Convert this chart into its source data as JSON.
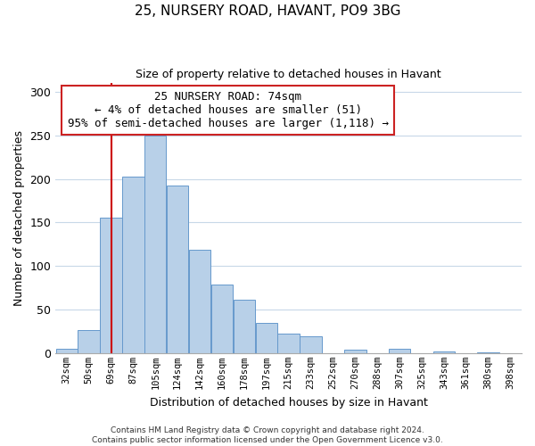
{
  "title": "25, NURSERY ROAD, HAVANT, PO9 3BG",
  "subtitle": "Size of property relative to detached houses in Havant",
  "xlabel": "Distribution of detached houses by size in Havant",
  "ylabel": "Number of detached properties",
  "footer_line1": "Contains HM Land Registry data © Crown copyright and database right 2024.",
  "footer_line2": "Contains public sector information licensed under the Open Government Licence v3.0.",
  "bins": [
    "32sqm",
    "50sqm",
    "69sqm",
    "87sqm",
    "105sqm",
    "124sqm",
    "142sqm",
    "160sqm",
    "178sqm",
    "197sqm",
    "215sqm",
    "233sqm",
    "252sqm",
    "270sqm",
    "288sqm",
    "307sqm",
    "325sqm",
    "343sqm",
    "361sqm",
    "380sqm",
    "398sqm"
  ],
  "values": [
    5,
    27,
    155,
    203,
    250,
    192,
    119,
    79,
    61,
    35,
    22,
    19,
    0,
    4,
    0,
    5,
    0,
    2,
    0,
    1,
    0
  ],
  "bar_color": "#b8d0e8",
  "bar_edge_color": "#6699cc",
  "vline_x_index": 2,
  "vline_color": "#cc0000",
  "annotation_title": "25 NURSERY ROAD: 74sqm",
  "annotation_line1": "← 4% of detached houses are smaller (51)",
  "annotation_line2": "95% of semi-detached houses are larger (1,118) →",
  "ylim": [
    0,
    310
  ],
  "yticks": [
    0,
    50,
    100,
    150,
    200,
    250,
    300
  ],
  "background_color": "#ffffff",
  "grid_color": "#c8d8e8"
}
